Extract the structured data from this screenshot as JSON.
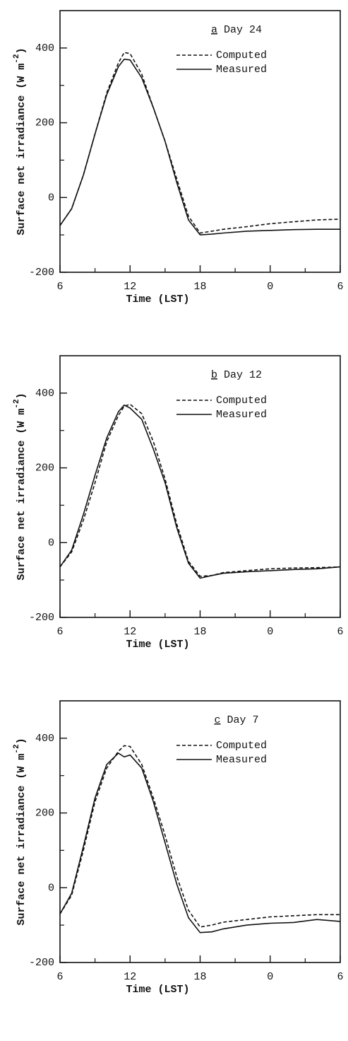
{
  "chart_data": [
    {
      "type": "line",
      "panel": "a",
      "title": "Day 24",
      "xlabel": "Time (LST)",
      "ylabel": [
        "Surface net irradiance (W m",
        "-2",
        ")"
      ],
      "x": [
        6,
        7,
        8,
        9,
        10,
        11,
        11.5,
        12,
        13,
        14,
        15,
        16,
        17,
        18,
        19,
        20,
        22,
        24,
        26,
        28,
        30
      ],
      "xlim": [
        6,
        30
      ],
      "xticks": [
        6,
        12,
        18,
        {
          "value": 24,
          "label": "0"
        },
        {
          "value": 30,
          "label": "6"
        }
      ],
      "xminor_ticks": [
        9,
        15,
        21,
        27
      ],
      "ylim": [
        -200,
        500
      ],
      "yticks": [
        -200,
        0,
        200,
        400
      ],
      "yminor_ticks": [
        -100,
        100,
        300
      ],
      "series": [
        {
          "name": "Computed",
          "color": "#111",
          "dash": true,
          "values": [
            -75,
            -30,
            60,
            170,
            280,
            360,
            388,
            385,
            330,
            240,
            150,
            50,
            -50,
            -95,
            -90,
            -85,
            -78,
            -70,
            -65,
            -60,
            -58
          ]
        },
        {
          "name": "Measured",
          "color": "#111",
          "dash": false,
          "values": [
            -75,
            -30,
            60,
            170,
            275,
            350,
            370,
            368,
            320,
            240,
            150,
            40,
            -60,
            -100,
            -98,
            -95,
            -90,
            -88,
            -86,
            -85,
            -85
          ]
        }
      ]
    },
    {
      "type": "line",
      "panel": "b",
      "title": "Day 12",
      "xlabel": "Time (LST)",
      "ylabel": [
        "Surface net irradiance (W m",
        "-2",
        ")"
      ],
      "x": [
        6,
        7,
        8,
        9,
        10,
        11,
        11.5,
        12,
        13,
        14,
        15,
        16,
        17,
        18,
        19,
        20,
        22,
        24,
        26,
        28,
        30
      ],
      "xlim": [
        6,
        30
      ],
      "xticks": [
        6,
        12,
        18,
        {
          "value": 24,
          "label": "0"
        },
        {
          "value": 30,
          "label": "6"
        }
      ],
      "xminor_ticks": [
        9,
        15,
        21,
        27
      ],
      "ylim": [
        -200,
        500
      ],
      "yticks": [
        -200,
        0,
        200,
        400
      ],
      "yminor_ticks": [
        -100,
        100,
        300
      ],
      "series": [
        {
          "name": "Computed",
          "color": "#111",
          "dash": true,
          "values": [
            -65,
            -25,
            60,
            160,
            270,
            340,
            365,
            370,
            345,
            270,
            170,
            50,
            -50,
            -90,
            -88,
            -80,
            -75,
            -70,
            -68,
            -67,
            -65
          ]
        },
        {
          "name": "Measured",
          "color": "#111",
          "dash": false,
          "values": [
            -65,
            -20,
            75,
            180,
            280,
            350,
            368,
            360,
            330,
            250,
            160,
            40,
            -55,
            -95,
            -88,
            -82,
            -78,
            -75,
            -72,
            -70,
            -65
          ]
        }
      ]
    },
    {
      "type": "line",
      "panel": "c",
      "title": "Day 7",
      "xlabel": "Time (LST)",
      "ylabel": [
        "Surface net irradiance (W m",
        "-2",
        ")"
      ],
      "x": [
        6,
        7,
        8,
        9,
        10,
        11,
        11.5,
        12,
        13,
        14,
        15,
        16,
        17,
        18,
        19,
        20,
        22,
        24,
        26,
        28,
        30
      ],
      "xlim": [
        6,
        30
      ],
      "xticks": [
        6,
        12,
        18,
        {
          "value": 24,
          "label": "0"
        },
        {
          "value": 30,
          "label": "6"
        }
      ],
      "xminor_ticks": [
        9,
        15,
        21,
        27
      ],
      "ylim": [
        -200,
        500
      ],
      "yticks": [
        -200,
        0,
        200,
        400
      ],
      "yminor_ticks": [
        -100,
        100,
        300
      ],
      "series": [
        {
          "name": "Computed",
          "color": "#111",
          "dash": true,
          "values": [
            -70,
            -20,
            100,
            230,
            320,
            365,
            380,
            378,
            330,
            240,
            140,
            30,
            -60,
            -105,
            -100,
            -92,
            -85,
            -78,
            -75,
            -72,
            -72
          ]
        },
        {
          "name": "Measured",
          "color": "#111",
          "dash": false,
          "values": [
            -70,
            -15,
            110,
            240,
            330,
            360,
            350,
            355,
            320,
            230,
            120,
            10,
            -80,
            -120,
            -118,
            -110,
            -100,
            -95,
            -93,
            -85,
            -90
          ]
        }
      ]
    }
  ]
}
